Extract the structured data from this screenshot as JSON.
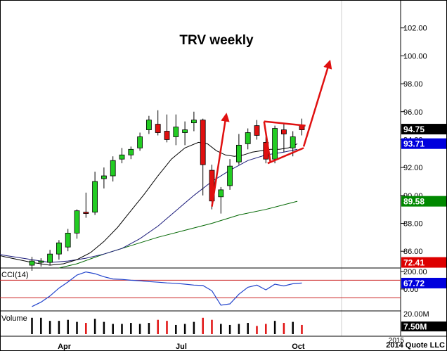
{
  "chart_data": {
    "type": "candlestick",
    "title": "TRV weekly",
    "copyright": "2014 Quote LLC",
    "colors": {
      "up": "#22cc22",
      "down": "#e01010",
      "ma_short": "#000000",
      "ma_mid": "#1a1a7a",
      "ma_long": "#006600",
      "annotation": "#e01010",
      "cci_line": "#2244cc",
      "cci_band": "#cc2222",
      "price_tag": "#000000",
      "ma_tag": "#0000dd",
      "long_ma_tag": "#008800",
      "low_tag": "#dd0000",
      "cci_tag": "#0000dd"
    },
    "price_axis": {
      "ylim": [
        84.8,
        104.0
      ],
      "ticks": [
        "102.00",
        "100.00",
        "98.00",
        "96.00",
        "94.00",
        "92.00",
        "90.00",
        "88.00",
        "86.00"
      ]
    },
    "price_tags": [
      {
        "label": "94.75",
        "value": 94.75,
        "color": "#000000"
      },
      {
        "label": "93.71",
        "value": 93.71,
        "color": "#0000dd"
      },
      {
        "label": "89.58",
        "value": 89.58,
        "color": "#008800"
      },
      {
        "label": "72.41",
        "value": 85.2,
        "color": "#dd0000"
      }
    ],
    "x_labels": [
      {
        "label": "Apr",
        "index": 3.6
      },
      {
        "label": "Jul",
        "index": 16.6
      },
      {
        "label": "Oct",
        "index": 29.6
      }
    ],
    "year_label": {
      "label": "2015",
      "index": 40.5
    },
    "candles": [
      {
        "o": 85.0,
        "h": 85.6,
        "l": 84.6,
        "c": 85.3
      },
      {
        "o": 85.2,
        "h": 85.5,
        "l": 84.9,
        "c": 85.3
      },
      {
        "o": 85.2,
        "h": 86.1,
        "l": 85.0,
        "c": 85.8
      },
      {
        "o": 85.8,
        "h": 86.8,
        "l": 85.4,
        "c": 86.6
      },
      {
        "o": 86.3,
        "h": 87.6,
        "l": 86.0,
        "c": 87.3
      },
      {
        "o": 87.3,
        "h": 89.0,
        "l": 86.9,
        "c": 88.9
      },
      {
        "o": 88.8,
        "h": 90.2,
        "l": 88.4,
        "c": 88.7
      },
      {
        "o": 88.8,
        "h": 91.7,
        "l": 88.6,
        "c": 91.0
      },
      {
        "o": 91.2,
        "h": 92.0,
        "l": 90.5,
        "c": 91.4
      },
      {
        "o": 91.4,
        "h": 92.8,
        "l": 91.0,
        "c": 92.5
      },
      {
        "o": 92.6,
        "h": 93.4,
        "l": 92.3,
        "c": 92.9
      },
      {
        "o": 92.9,
        "h": 93.5,
        "l": 92.6,
        "c": 93.3
      },
      {
        "o": 93.4,
        "h": 94.5,
        "l": 93.2,
        "c": 94.2
      },
      {
        "o": 94.7,
        "h": 95.7,
        "l": 94.4,
        "c": 95.4
      },
      {
        "o": 95.1,
        "h": 96.1,
        "l": 94.3,
        "c": 94.5
      },
      {
        "o": 94.6,
        "h": 95.8,
        "l": 93.8,
        "c": 94.0
      },
      {
        "o": 94.2,
        "h": 95.8,
        "l": 93.6,
        "c": 94.9
      },
      {
        "o": 94.5,
        "h": 95.3,
        "l": 93.6,
        "c": 94.7
      },
      {
        "o": 95.2,
        "h": 96.0,
        "l": 94.6,
        "c": 95.4
      },
      {
        "o": 95.4,
        "h": 95.5,
        "l": 90.0,
        "c": 92.2
      },
      {
        "o": 91.8,
        "h": 92.2,
        "l": 89.0,
        "c": 89.6
      },
      {
        "o": 89.9,
        "h": 90.6,
        "l": 88.7,
        "c": 90.4
      },
      {
        "o": 90.7,
        "h": 92.6,
        "l": 90.4,
        "c": 92.1
      },
      {
        "o": 92.4,
        "h": 94.4,
        "l": 92.2,
        "c": 93.6
      },
      {
        "o": 93.7,
        "h": 94.8,
        "l": 93.3,
        "c": 94.5
      },
      {
        "o": 95.0,
        "h": 95.4,
        "l": 94.0,
        "c": 94.3
      },
      {
        "o": 93.8,
        "h": 94.2,
        "l": 92.3,
        "c": 92.6
      },
      {
        "o": 92.6,
        "h": 95.0,
        "l": 92.3,
        "c": 94.8
      },
      {
        "o": 94.7,
        "h": 95.2,
        "l": 93.1,
        "c": 94.4
      },
      {
        "o": 93.4,
        "h": 94.6,
        "l": 92.8,
        "c": 94.2
      },
      {
        "o": 95.0,
        "h": 95.5,
        "l": 94.3,
        "c": 94.7
      }
    ],
    "ma_short": [
      [
        -6.2,
        86.1
      ],
      [
        -3,
        85.6
      ],
      [
        0,
        85.2
      ],
      [
        2,
        85.0
      ],
      [
        3.5,
        85.1
      ],
      [
        5,
        85.4
      ],
      [
        6.5,
        85.9
      ],
      [
        8,
        86.7
      ],
      [
        9.5,
        87.7
      ],
      [
        11,
        88.9
      ],
      [
        12.5,
        90.1
      ],
      [
        14,
        91.4
      ],
      [
        15.5,
        92.6
      ],
      [
        17,
        93.4
      ],
      [
        18.5,
        93.8
      ],
      [
        19.5,
        93.7
      ],
      [
        20.5,
        93.2
      ],
      [
        21.5,
        92.9
      ],
      [
        22.5,
        92.8
      ],
      [
        23.5,
        92.9
      ],
      [
        24.5,
        93.1
      ],
      [
        25.5,
        93.2
      ],
      [
        26.5,
        93.3
      ],
      [
        27.5,
        93.3
      ],
      [
        28.5,
        93.4
      ],
      [
        29.5,
        93.7
      ]
    ],
    "ma_mid": [
      [
        -6.2,
        86.1
      ],
      [
        -3,
        85.7
      ],
      [
        0,
        85.4
      ],
      [
        2,
        85.2
      ],
      [
        4,
        85.3
      ],
      [
        6,
        85.5
      ],
      [
        8,
        85.8
      ],
      [
        10,
        86.2
      ],
      [
        12,
        86.9
      ],
      [
        14,
        87.8
      ],
      [
        16,
        88.9
      ],
      [
        18,
        90.0
      ],
      [
        20,
        91.0
      ],
      [
        22,
        91.8
      ],
      [
        24,
        92.5
      ],
      [
        26,
        92.9
      ],
      [
        28,
        93.1
      ],
      [
        29.5,
        93.3
      ]
    ],
    "ma_long": [
      [
        3,
        84.8
      ],
      [
        5,
        85.1
      ],
      [
        8,
        85.8
      ],
      [
        11,
        86.4
      ],
      [
        14,
        87.0
      ],
      [
        17,
        87.5
      ],
      [
        20,
        88.0
      ],
      [
        23,
        88.6
      ],
      [
        26,
        89.0
      ],
      [
        29.5,
        89.58
      ]
    ],
    "annotations": {
      "arrows": [
        {
          "from": [
            20.0,
            89.2
          ],
          "to": [
            21.6,
            95.8
          ]
        },
        {
          "from": [
            30.2,
            93.5
          ],
          "to": [
            33.1,
            99.6
          ]
        }
      ],
      "flag_lines": [
        [
          [
            25.8,
            95.3
          ],
          [
            30.4,
            95.0
          ]
        ],
        [
          [
            26.2,
            92.3
          ],
          [
            30.2,
            93.4
          ]
        ],
        [
          [
            25.8,
            95.3
          ],
          [
            26.5,
            92.4
          ]
        ]
      ]
    },
    "cci": {
      "label": "CCI(14)",
      "ylim": [
        -250,
        240
      ],
      "levels": [
        {
          "label": "200.00",
          "value": 200
        },
        {
          "label": "0.00",
          "value": 0
        }
      ],
      "tag": {
        "label": "67.72",
        "value": 67.72
      },
      "band": [
        100,
        -100
      ],
      "values": [
        -200,
        -150,
        -80,
        10,
        80,
        160,
        195,
        175,
        140,
        115,
        110,
        100,
        95,
        85,
        78,
        70,
        65,
        55,
        45,
        40,
        -20,
        -185,
        -170,
        -60,
        20,
        45,
        -10,
        55,
        35,
        60,
        68
      ]
    },
    "volume": {
      "label": "Volume",
      "ylim": [
        0,
        20
      ],
      "tick": {
        "label": "20.00M",
        "value": 20
      },
      "tag": {
        "label": "7.50M",
        "value": 7.5
      },
      "values": [
        16,
        16,
        13,
        13,
        14,
        12,
        11,
        15,
        12,
        10,
        10,
        11,
        10,
        11,
        14,
        13,
        9,
        10,
        12,
        16,
        14,
        10,
        9,
        10,
        11,
        8,
        10,
        13,
        11,
        12,
        9
      ]
    }
  }
}
